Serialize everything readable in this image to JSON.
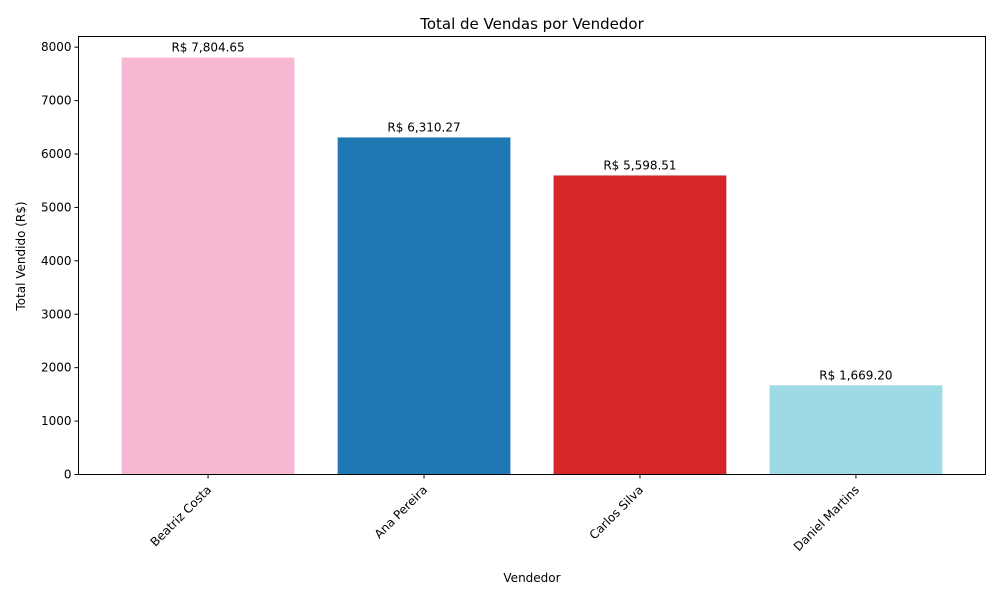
{
  "chart_data": {
    "type": "bar",
    "title": "Total de Vendas por Vendedor",
    "xlabel": "Vendedor",
    "ylabel": "Total Vendido (R$)",
    "categories": [
      "Beatriz Costa",
      "Ana Pereira",
      "Carlos Silva",
      "Daniel Martins"
    ],
    "values": [
      7804.65,
      6310.27,
      5598.51,
      1669.2
    ],
    "value_labels": [
      "R$ 7,804.65",
      "R$ 6,310.27",
      "R$ 5,598.51",
      "R$ 1,669.20"
    ],
    "colors": [
      "#f7b6d2",
      "#1f77b4",
      "#d62728",
      "#9edae5"
    ],
    "ylim": [
      0,
      8200
    ],
    "yticks": [
      0,
      1000,
      2000,
      3000,
      4000,
      5000,
      6000,
      7000,
      8000
    ],
    "ytick_labels": [
      "0",
      "1000",
      "2000",
      "3000",
      "4000",
      "5000",
      "6000",
      "7000",
      "8000"
    ],
    "grid": false,
    "legend": "none"
  }
}
